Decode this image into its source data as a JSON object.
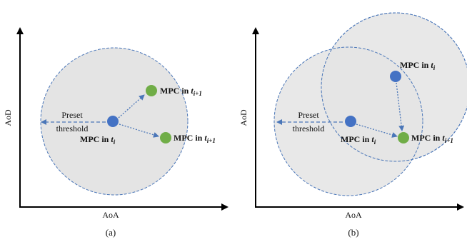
{
  "panel_a": {
    "x_axis_label": "AoA",
    "y_axis_label": "AoD",
    "caption": "(a)",
    "threshold_label_line1": "Preset",
    "threshold_label_line2": "threshold",
    "mpc_current": {
      "prefix": "MPC in ",
      "var": "t",
      "sub": "i"
    },
    "mpc_next_upper": {
      "prefix": "MPC in ",
      "var": "t",
      "sub": "i+1"
    },
    "mpc_next_lower": {
      "prefix": "MPC in ",
      "var": "t",
      "sub": "i+1"
    }
  },
  "panel_b": {
    "x_axis_label": "AoA",
    "y_axis_label": "AoD",
    "caption": "(b)",
    "threshold_label_line1": "Preset",
    "threshold_label_line2": "threshold",
    "mpc_upper": {
      "prefix": "MPC in ",
      "var": "t",
      "sub": "i"
    },
    "mpc_current": {
      "prefix": "MPC in ",
      "var": "t",
      "sub": "i"
    },
    "mpc_next": {
      "prefix": "MPC in ",
      "var": "t",
      "sub": "i+1"
    }
  },
  "colors": {
    "circle_fill": "#e4e4e4",
    "circle_stroke": "#4a76b8",
    "blue_dot": "#4472c4",
    "green_dot": "#70ad47",
    "axis": "#000000"
  }
}
